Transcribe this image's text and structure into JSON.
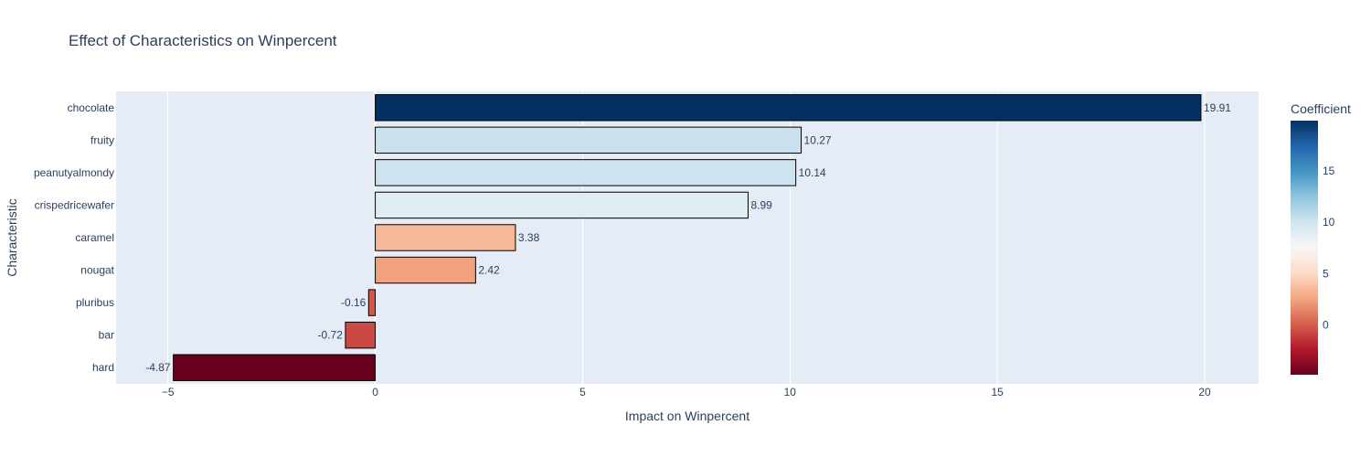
{
  "chart_data": {
    "type": "bar",
    "orientation": "horizontal",
    "title": "Effect of Characteristics on Winpercent",
    "xlabel": "Impact on Winpercent",
    "ylabel": "Characteristic",
    "categories": [
      "hard",
      "bar",
      "pluribus",
      "nougat",
      "caramel",
      "crispedricewafer",
      "peanutyalmondy",
      "fruity",
      "chocolate"
    ],
    "values": [
      -4.87,
      -0.72,
      -0.16,
      2.42,
      3.38,
      8.99,
      10.14,
      10.27,
      19.91
    ],
    "value_labels": [
      "-4.87",
      "-0.72",
      "-0.16",
      "2.42",
      "3.38",
      "8.99",
      "10.14",
      "10.27",
      "19.91"
    ],
    "xlim": [
      -6.25,
      21.3
    ],
    "xticks": [
      -5,
      0,
      5,
      10,
      15,
      20
    ],
    "xtick_labels": [
      "−5",
      "0",
      "5",
      "10",
      "15",
      "20"
    ],
    "grid": true,
    "colorscale": "RdBu",
    "colorbar": {
      "title": "Coefficient",
      "range": [
        -4.87,
        19.91
      ],
      "ticks": [
        0,
        5,
        10,
        15
      ],
      "tick_labels": [
        "0",
        "5",
        "10",
        "15"
      ]
    },
    "colors": {
      "plot_bg": "#e5ecf6",
      "grid": "#ffffff",
      "text": "#2a3f5f",
      "bar_outline": "#000000"
    }
  }
}
